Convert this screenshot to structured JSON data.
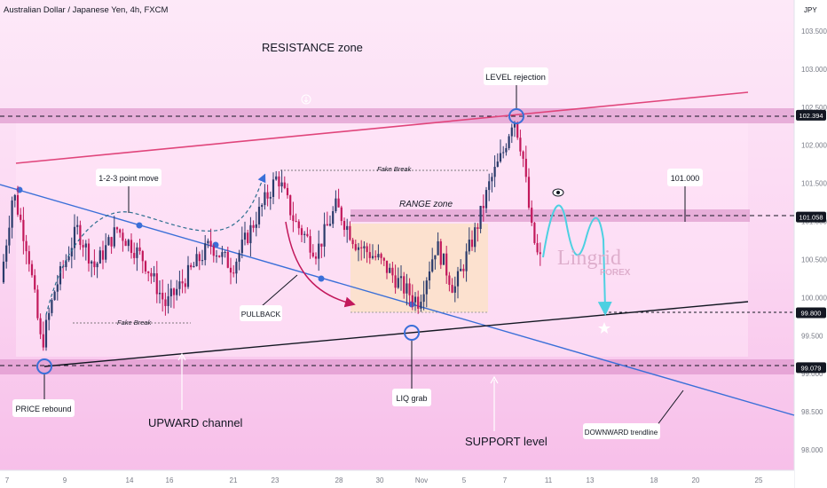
{
  "header": {
    "title": "Australian Dollar / Japanese Yen, 4h, FXCM",
    "currency": "JPY"
  },
  "chart_data": {
    "type": "candlestick",
    "title": "Australian Dollar / Japanese Yen, 4h, FXCM",
    "ylim": [
      97.7,
      103.75
    ],
    "y_ticks": [
      "103.500",
      "103.000",
      "102.500",
      "102.000",
      "101.500",
      "101.000",
      "100.500",
      "100.000",
      "99.500",
      "99.000",
      "98.500",
      "98.000"
    ],
    "x_ticks": [
      "7",
      "9",
      "14",
      "16",
      "21",
      "23",
      "28",
      "30",
      "Nov",
      "5",
      "7",
      "11",
      "13",
      "18",
      "20",
      "25"
    ],
    "price_badges": [
      {
        "label": "102.394",
        "value": 102.394,
        "bg": "#131722"
      },
      {
        "label": "101.058",
        "value": 101.058,
        "bg": "#131722"
      },
      {
        "label": "99.800",
        "value": 99.8,
        "bg": "#131722"
      },
      {
        "label": "99.079",
        "value": 99.079,
        "bg": "#131722"
      }
    ],
    "levels": [
      {
        "name": "resistance",
        "value": 102.394
      },
      {
        "name": "range-top",
        "value": 101.058
      },
      {
        "name": "target",
        "value": 99.8
      },
      {
        "name": "support",
        "value": 99.079
      }
    ],
    "candles_summary": {
      "start": 100.4,
      "low": 99.1,
      "high": 102.45,
      "last": 100.5
    },
    "grid": false
  },
  "annotations": {
    "resistance_zone": "RESISTANCE zone",
    "level_rejection": "LEVEL rejection",
    "range_zone": "RANGE zone",
    "fake_break_top": "Fake Break",
    "fake_break_bottom": "Fake Break",
    "point_move": "1-2-3 point move",
    "pullback": "PULLBACK",
    "price_rebound": "PRICE rebound",
    "upward_channel": "UPWARD channel",
    "liq_grab": "LIQ grab",
    "support_level": "SUPPORT level",
    "downward_trendline": "DOWNWARD trendline",
    "target_label": "101.000"
  },
  "watermark": {
    "brand": "Lingrid",
    "sub": "FOREX"
  },
  "colors": {
    "bull": "#2a3b6b",
    "bear": "#c2185b",
    "zone": "#e8a5d6",
    "background": "#fbd3f1",
    "trend_blue": "#3a6fd8",
    "trend_red": "#e0457b",
    "channel": "#131722",
    "projection": "#4dd0e1"
  }
}
